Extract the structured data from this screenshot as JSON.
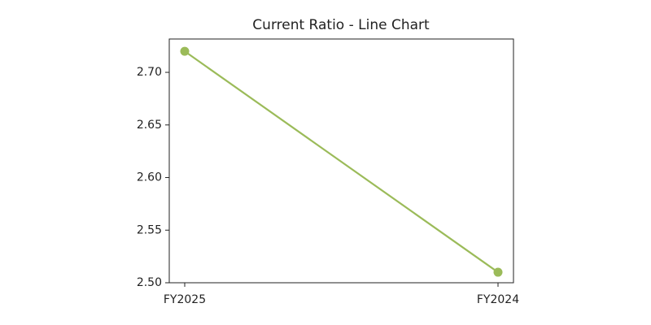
{
  "chart_data": {
    "type": "line",
    "title": "Current Ratio - Line Chart",
    "categories": [
      "FY2025",
      "FY2024"
    ],
    "series": [
      {
        "name": "Current Ratio",
        "color": "#9bbb59",
        "values": [
          2.72,
          2.51
        ]
      }
    ],
    "ylim": [
      2.5,
      2.7317
    ],
    "yticks": [
      {
        "value": 2.5,
        "label": "2.50"
      },
      2.55,
      {
        "value": 2.6,
        "label": "2.60"
      },
      2.65,
      {
        "value": 2.7,
        "label": "2.70"
      }
    ],
    "grid": false,
    "legend": false
  }
}
